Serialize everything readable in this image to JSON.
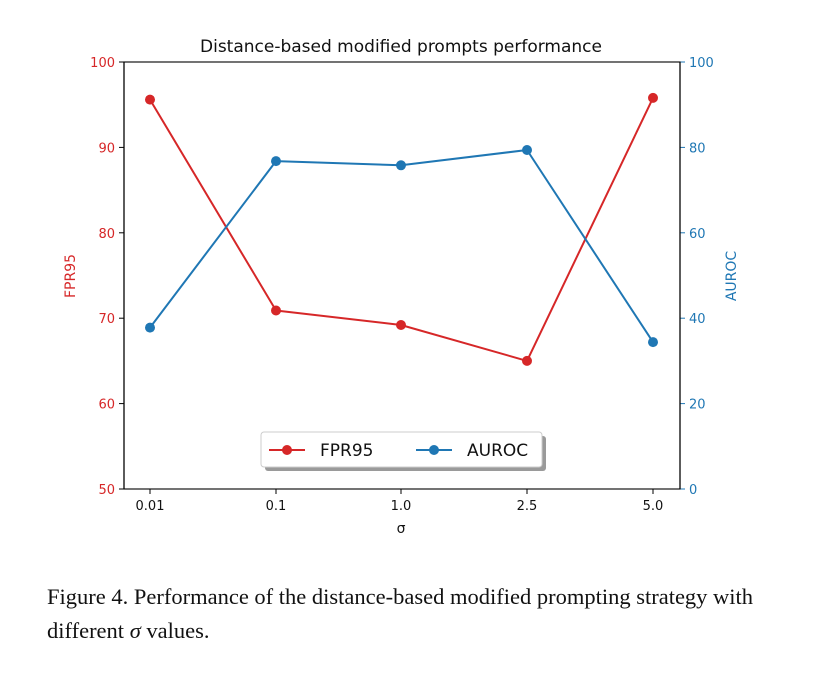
{
  "chart_data": {
    "type": "line",
    "title": "Distance-based modified prompts performance",
    "xlabel": "σ",
    "categories": [
      "0.01",
      "0.1",
      "1.0",
      "2.5",
      "5.0"
    ],
    "y_left": {
      "label": "FPR95",
      "lim": [
        50,
        100
      ],
      "ticks": [
        "50",
        "60",
        "70",
        "80",
        "90",
        "100"
      ],
      "color": "#d62728"
    },
    "y_right": {
      "label": "AUROC",
      "lim": [
        0,
        100
      ],
      "ticks": [
        "0",
        "20",
        "40",
        "60",
        "80",
        "100"
      ],
      "color": "#1f77b4"
    },
    "series": [
      {
        "name": "FPR95",
        "axis": "left",
        "color": "#d62728",
        "values": [
          95.6,
          70.9,
          69.2,
          65.0,
          95.8
        ]
      },
      {
        "name": "AUROC",
        "axis": "right",
        "color": "#1f77b4",
        "values": [
          37.8,
          76.8,
          75.8,
          79.4,
          34.4
        ]
      }
    ],
    "legend": {
      "placement": "lower-center",
      "entries": [
        "FPR95",
        "AUROC"
      ]
    },
    "grid": false
  },
  "caption": {
    "text_before": "Figure 4. Performance of the distance-based modified prompting strategy with different ",
    "symbol": "σ",
    "text_after": " values."
  }
}
